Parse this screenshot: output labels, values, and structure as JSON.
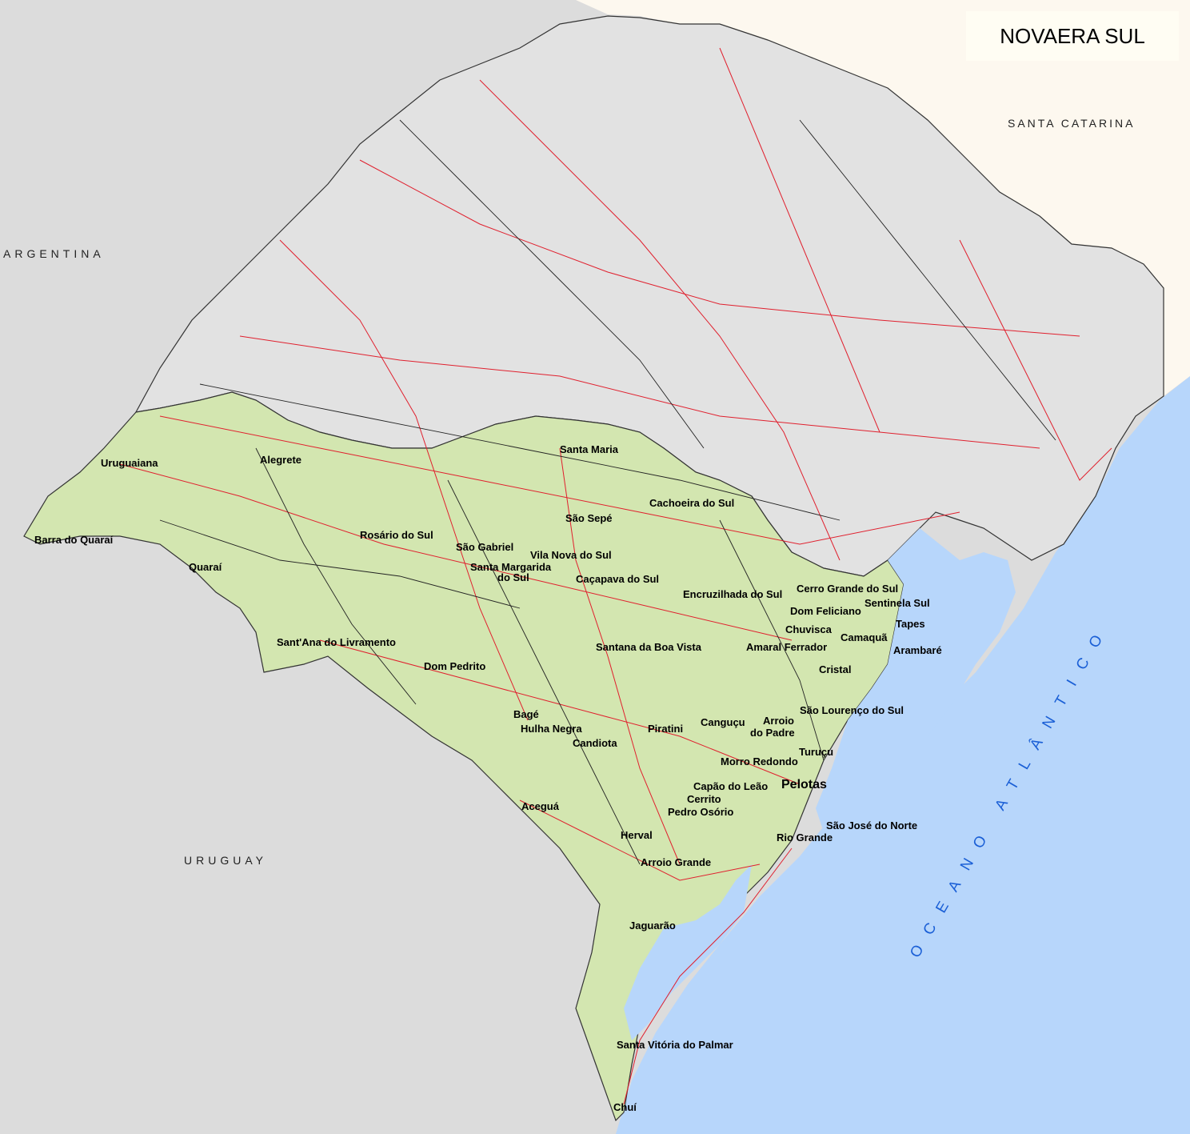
{
  "map": {
    "title": "NOVAERA SUL",
    "colors": {
      "background": "#dcdcdc",
      "north_region": "#e2e2e2",
      "south_region": "#d3e6b0",
      "ocean": "#b7d6fb",
      "lagoon": "#b7d6fb",
      "santa_catarina": "#fdf8ef",
      "roads_red": "#e0202e",
      "roads_black": "#222222",
      "border": "#333333"
    },
    "regions": {
      "argentina": "ARGENTINA",
      "uruguay": "URUGUAY",
      "santa_catarina": "SANTA CATARINA",
      "ocean": "OCEANO ATLÂNTICO"
    },
    "cities": [
      "Uruguaiana",
      "Alegrete",
      "Santa Maria",
      "Cachoeira do Sul",
      "São Sepé",
      "Barra do Quaraí",
      "Rosário do Sul",
      "São Gabriel",
      "Vila Nova do Sul",
      "Santa Margarida",
      "do Sul",
      "Quaraí",
      "Caçapava do Sul",
      "Encruzilhada do Sul",
      "Cerro Grande do Sul",
      "Sentinela Sul",
      "Dom Feliciano",
      "Tapes",
      "Chuvisca",
      "Camaquã",
      "Arambaré",
      "Amaral Ferrador",
      "Sant'Ana do Livramento",
      "Santana da Boa Vista",
      "Dom Pedrito",
      "Cristal",
      "São Lourenço do Sul",
      "Bagé",
      "Hulha Negra",
      "Piratini",
      "Canguçu",
      "Arroio",
      "do Padre",
      "Candiota",
      "Turuçu",
      "Morro Redondo",
      "Pelotas",
      "Capão do Leão",
      "Aceguá",
      "Cerrito",
      "Pedro Osório",
      "São José do Norte",
      "Herval",
      "Rio Grande",
      "Arroio Grande",
      "Jaguarão",
      "Santa Vitória do Palmar",
      "Chuí"
    ]
  }
}
